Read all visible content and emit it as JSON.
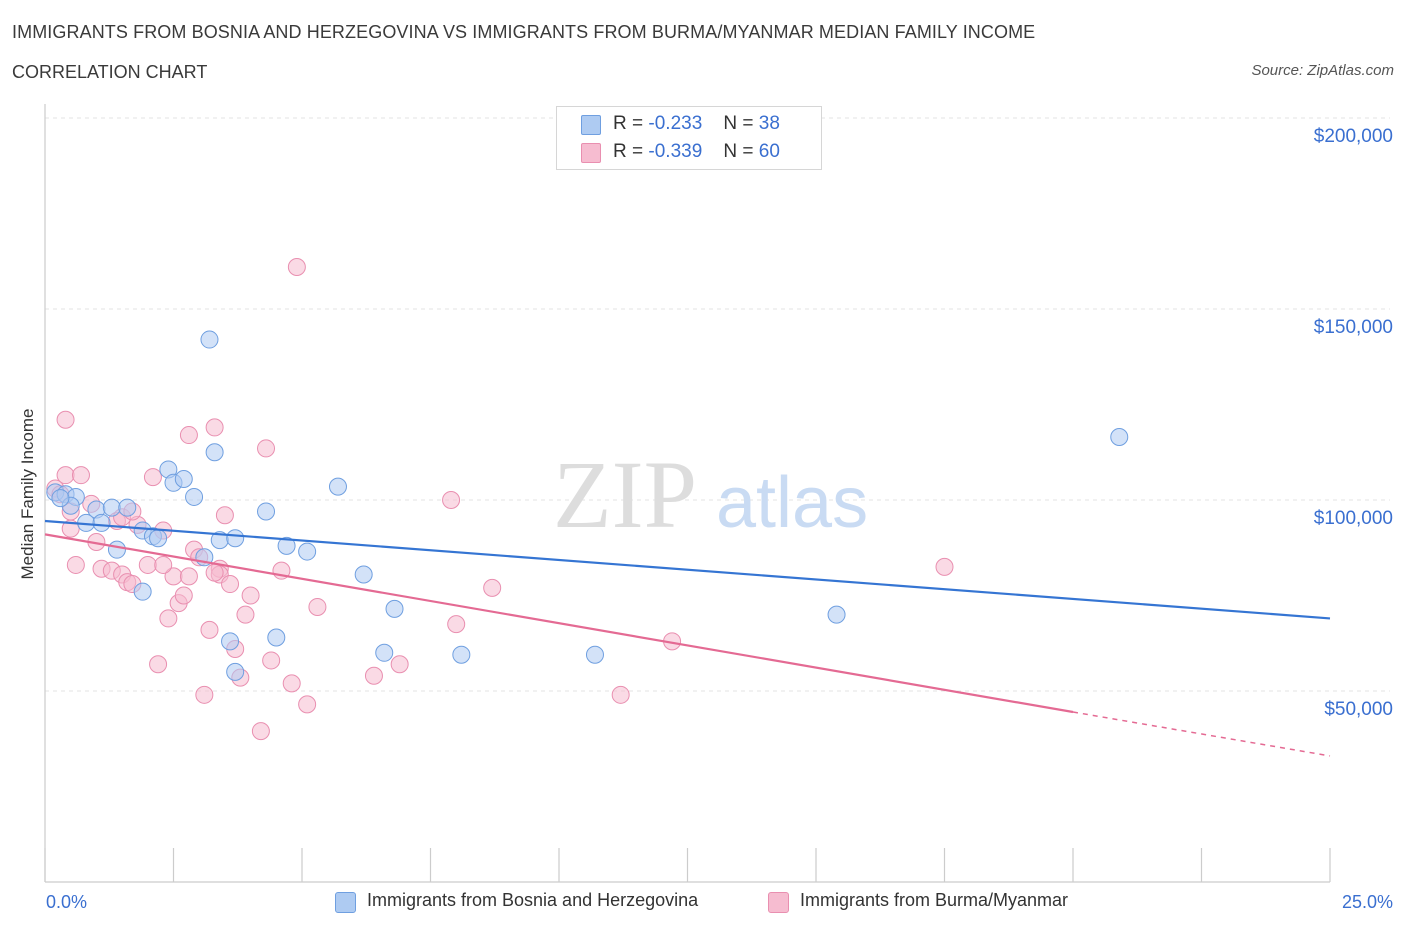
{
  "title": "IMMIGRANTS FROM BOSNIA AND HERZEGOVINA VS IMMIGRANTS FROM BURMA/MYANMAR MEDIAN FAMILY INCOME",
  "subtitle": "CORRELATION CHART",
  "source": "Source: ZipAtlas.com",
  "watermark": {
    "zip": "ZIP",
    "atlas": "atlas"
  },
  "legend": {
    "rows": [
      {
        "r_label": "R =",
        "r_value": "-0.233",
        "n_label": "N =",
        "n_value": "38"
      },
      {
        "r_label": "R =",
        "r_value": "-0.339",
        "n_label": "N =",
        "n_value": "60"
      }
    ]
  },
  "colors": {
    "series1_fill": "#aecbf2",
    "series1_stroke": "#6f9fe0",
    "series1_line": "#3575d3",
    "series2_fill": "#f6bcd0",
    "series2_stroke": "#e98fb0",
    "series2_line": "#e46a93",
    "axis_label": "#3a6fd0"
  },
  "chart_data": {
    "type": "scatter",
    "xlabel": "",
    "ylabel": "Median Family Income",
    "xlim": [
      0,
      25
    ],
    "ylim": [
      0,
      200000
    ],
    "x_tick_labels": [
      "0.0%",
      "25.0%"
    ],
    "y_ticks": [
      50000,
      100000,
      150000,
      200000
    ],
    "y_tick_labels": [
      "$50,000",
      "$100,000",
      "$150,000",
      "$200,000"
    ],
    "series": [
      {
        "name": "Immigrants from Bosnia and Herzegovina",
        "trend": {
          "x0": 0,
          "y0": 94500,
          "x1": 25,
          "y1": 69000
        },
        "points": [
          [
            0.2,
            102000
          ],
          [
            0.4,
            101500
          ],
          [
            0.6,
            100800
          ],
          [
            0.5,
            98500
          ],
          [
            1.0,
            97500
          ],
          [
            1.3,
            98000
          ],
          [
            1.6,
            98000
          ],
          [
            0.8,
            94000
          ],
          [
            1.1,
            94000
          ],
          [
            1.4,
            87000
          ],
          [
            1.9,
            92000
          ],
          [
            2.1,
            90500
          ],
          [
            2.4,
            108000
          ],
          [
            2.5,
            104500
          ],
          [
            2.7,
            105500
          ],
          [
            2.9,
            100800
          ],
          [
            3.3,
            112500
          ],
          [
            3.2,
            142000
          ],
          [
            3.4,
            89500
          ],
          [
            3.1,
            85000
          ],
          [
            3.7,
            90000
          ],
          [
            4.3,
            97000
          ],
          [
            4.7,
            88000
          ],
          [
            5.1,
            86500
          ],
          [
            5.7,
            103500
          ],
          [
            6.2,
            80500
          ],
          [
            6.8,
            71500
          ],
          [
            6.6,
            60000
          ],
          [
            8.1,
            59500
          ],
          [
            10.7,
            59500
          ],
          [
            3.6,
            63000
          ],
          [
            3.7,
            55000
          ],
          [
            4.5,
            64000
          ],
          [
            1.9,
            76000
          ],
          [
            2.2,
            90000
          ],
          [
            15.4,
            70000
          ],
          [
            20.9,
            116500
          ],
          [
            0.3,
            100500
          ]
        ]
      },
      {
        "name": "Immigrants from Burma/Myanmar",
        "trend": {
          "x0": 0,
          "y0": 91000,
          "x1": 20,
          "y1": 44500
        },
        "trend_dashed": {
          "x0": 20,
          "y0": 44500,
          "x1": 25,
          "y1": 33000
        },
        "points": [
          [
            0.2,
            103000
          ],
          [
            0.4,
            106500
          ],
          [
            0.7,
            106500
          ],
          [
            0.4,
            121000
          ],
          [
            0.5,
            92500
          ],
          [
            0.6,
            83000
          ],
          [
            0.9,
            99000
          ],
          [
            1.0,
            89000
          ],
          [
            1.1,
            82000
          ],
          [
            1.3,
            81500
          ],
          [
            1.4,
            94500
          ],
          [
            1.5,
            80500
          ],
          [
            1.6,
            78500
          ],
          [
            1.7,
            78000
          ],
          [
            1.8,
            93500
          ],
          [
            2.0,
            83000
          ],
          [
            2.1,
            106000
          ],
          [
            2.2,
            57000
          ],
          [
            2.3,
            92000
          ],
          [
            2.4,
            69000
          ],
          [
            2.5,
            80000
          ],
          [
            2.6,
            73000
          ],
          [
            2.7,
            75000
          ],
          [
            2.8,
            80000
          ],
          [
            2.8,
            117000
          ],
          [
            2.9,
            87000
          ],
          [
            3.0,
            85000
          ],
          [
            3.1,
            49000
          ],
          [
            3.2,
            66000
          ],
          [
            3.3,
            119000
          ],
          [
            3.4,
            82000
          ],
          [
            3.4,
            80500
          ],
          [
            3.5,
            96000
          ],
          [
            3.6,
            78000
          ],
          [
            3.7,
            61000
          ],
          [
            3.8,
            53500
          ],
          [
            3.9,
            70000
          ],
          [
            4.0,
            75000
          ],
          [
            4.2,
            39500
          ],
          [
            4.3,
            113500
          ],
          [
            4.4,
            58000
          ],
          [
            4.6,
            81500
          ],
          [
            4.8,
            52000
          ],
          [
            4.9,
            161000
          ],
          [
            5.1,
            46500
          ],
          [
            5.3,
            72000
          ],
          [
            6.4,
            54000
          ],
          [
            6.9,
            57000
          ],
          [
            7.9,
            100000
          ],
          [
            8.0,
            67500
          ],
          [
            8.7,
            77000
          ],
          [
            11.2,
            49000
          ],
          [
            12.2,
            63000
          ],
          [
            17.5,
            82500
          ],
          [
            0.3,
            101500
          ],
          [
            0.5,
            97000
          ],
          [
            1.5,
            95500
          ],
          [
            2.3,
            83000
          ],
          [
            3.3,
            81000
          ],
          [
            1.7,
            97000
          ]
        ]
      }
    ]
  }
}
